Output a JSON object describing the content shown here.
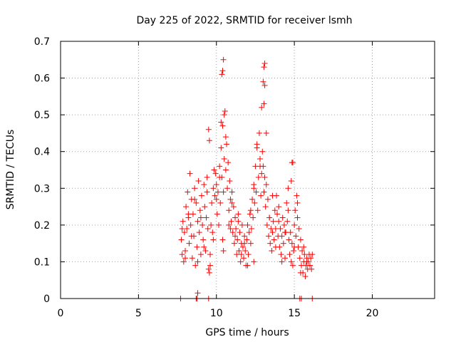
{
  "chart_data": {
    "type": "scatter",
    "title": "Day 225 of 2022, SRMTID for receiver lsmh",
    "xlabel": "GPS time / hours",
    "ylabel": "SRMTID / TECUs",
    "xlim": [
      0,
      24
    ],
    "ylim": [
      0,
      0.7
    ],
    "xticks": [
      0,
      5,
      10,
      15,
      20
    ],
    "xtick_labels": [
      "0",
      "5",
      "10",
      "15",
      "20"
    ],
    "yticks": [
      0,
      0.1,
      0.2,
      0.3,
      0.4,
      0.5,
      0.6,
      0.7
    ],
    "ytick_labels": [
      "0",
      "0.1",
      "0.2",
      "0.3",
      "0.4",
      "0.5",
      "0.6",
      "0.7"
    ],
    "grid": true,
    "marker": "+",
    "color": "#ff0000",
    "series": [
      {
        "name": "SRMTID",
        "x": [
          7.75,
          7.8,
          7.85,
          7.9,
          7.95,
          8.0,
          8.05,
          8.1,
          8.15,
          8.2,
          8.25,
          8.3,
          8.35,
          8.4,
          8.45,
          8.5,
          8.55,
          8.6,
          8.65,
          8.7,
          8.75,
          8.8,
          8.85,
          8.9,
          8.95,
          9.0,
          9.05,
          9.1,
          9.15,
          9.2,
          9.25,
          9.3,
          9.35,
          9.4,
          9.45,
          9.5,
          9.55,
          9.6,
          9.65,
          9.7,
          9.75,
          9.8,
          9.85,
          9.9,
          9.95,
          10.0,
          10.05,
          10.1,
          10.15,
          10.2,
          10.25,
          10.3,
          10.35,
          10.4,
          10.45,
          10.5,
          10.55,
          10.6,
          10.65,
          10.7,
          10.75,
          10.8,
          10.85,
          10.9,
          10.95,
          11.0,
          11.05,
          11.1,
          11.15,
          11.2,
          11.25,
          11.3,
          11.35,
          11.4,
          11.45,
          11.5,
          11.55,
          11.6,
          11.65,
          11.7,
          11.75,
          11.8,
          11.85,
          11.9,
          11.95,
          12.0,
          12.05,
          12.1,
          12.15,
          12.2,
          12.25,
          12.3,
          12.35,
          12.4,
          12.45,
          12.5,
          12.55,
          12.6,
          12.65,
          12.7,
          12.75,
          12.8,
          12.85,
          12.9,
          12.95,
          13.0,
          13.05,
          13.1,
          13.15,
          13.2,
          13.25,
          13.3,
          13.35,
          13.4,
          13.45,
          13.5,
          13.55,
          13.6,
          13.65,
          13.7,
          13.75,
          13.8,
          13.85,
          13.9,
          13.95,
          14.0,
          14.05,
          14.1,
          14.15,
          14.2,
          14.25,
          14.3,
          14.35,
          14.4,
          14.45,
          14.5,
          14.55,
          14.6,
          14.65,
          14.7,
          14.75,
          14.8,
          14.85,
          14.9,
          14.95,
          15.0,
          15.05,
          15.1,
          15.15,
          15.2,
          15.25,
          15.3,
          15.35,
          15.4,
          15.45,
          15.5,
          15.55,
          15.6,
          15.65,
          15.7,
          15.75,
          15.8,
          15.85,
          15.9,
          15.95,
          16.0,
          16.05,
          16.1,
          16.15,
          7.8,
          8.0,
          8.2,
          8.4,
          8.6,
          8.8,
          9.0,
          9.2,
          9.4,
          9.6,
          9.8,
          10.0,
          10.2,
          10.3,
          10.35,
          10.4,
          10.45,
          10.5,
          10.6,
          10.8,
          11.0,
          11.2,
          11.4,
          11.6,
          11.8,
          12.0,
          12.2,
          12.4,
          12.6,
          12.8,
          12.9,
          13.0,
          13.05,
          13.1,
          13.2,
          13.4,
          13.6,
          13.8,
          14.0,
          14.2,
          14.4,
          14.6,
          14.8,
          14.9,
          15.0,
          15.2,
          15.4,
          15.6,
          15.8,
          16.0,
          9.5,
          9.55,
          10.4,
          10.45,
          13.05,
          13.1,
          10.9,
          12.4,
          14.85,
          7.7,
          8.7,
          8.75,
          9.5,
          15.35,
          15.45,
          16.15,
          8.8
        ],
        "y": [
          0.16,
          0.12,
          0.21,
          0.1,
          0.18,
          0.13,
          0.25,
          0.19,
          0.29,
          0.22,
          0.15,
          0.34,
          0.2,
          0.27,
          0.11,
          0.23,
          0.17,
          0.3,
          0.09,
          0.26,
          0.14,
          0.21,
          0.32,
          0.18,
          0.24,
          0.12,
          0.28,
          0.2,
          0.16,
          0.31,
          0.25,
          0.13,
          0.22,
          0.33,
          0.19,
          0.08,
          0.07,
          0.12,
          0.2,
          0.26,
          0.18,
          0.3,
          0.35,
          0.28,
          0.34,
          0.31,
          0.23,
          0.29,
          0.2,
          0.36,
          0.26,
          0.41,
          0.33,
          0.47,
          0.29,
          0.38,
          0.51,
          0.35,
          0.42,
          0.3,
          0.37,
          0.24,
          0.32,
          0.27,
          0.21,
          0.29,
          0.18,
          0.25,
          0.15,
          0.22,
          0.19,
          0.12,
          0.16,
          0.21,
          0.13,
          0.18,
          0.1,
          0.15,
          0.2,
          0.14,
          0.11,
          0.17,
          0.13,
          0.09,
          0.16,
          0.2,
          0.12,
          0.18,
          0.23,
          0.15,
          0.19,
          0.27,
          0.22,
          0.31,
          0.26,
          0.36,
          0.29,
          0.41,
          0.24,
          0.33,
          0.45,
          0.38,
          0.28,
          0.34,
          0.4,
          0.36,
          0.29,
          0.33,
          0.25,
          0.31,
          0.2,
          0.27,
          0.17,
          0.22,
          0.15,
          0.19,
          0.13,
          0.18,
          0.21,
          0.16,
          0.24,
          0.19,
          0.28,
          0.23,
          0.17,
          0.21,
          0.14,
          0.19,
          0.12,
          0.17,
          0.22,
          0.15,
          0.2,
          0.11,
          0.18,
          0.26,
          0.21,
          0.3,
          0.16,
          0.12,
          0.18,
          0.1,
          0.15,
          0.09,
          0.13,
          0.2,
          0.24,
          0.17,
          0.28,
          0.22,
          0.14,
          0.19,
          0.11,
          0.16,
          0.09,
          0.13,
          0.07,
          0.1,
          0.12,
          0.06,
          0.09,
          0.11,
          0.08,
          0.1,
          0.12,
          0.09,
          0.11,
          0.08,
          0.12,
          0.19,
          0.11,
          0.23,
          0.17,
          0.27,
          0.1,
          0.22,
          0.14,
          0.29,
          0.09,
          0.16,
          0.27,
          0.33,
          0.48,
          0.61,
          0.62,
          0.65,
          0.5,
          0.44,
          0.2,
          0.26,
          0.17,
          0.23,
          0.12,
          0.15,
          0.09,
          0.24,
          0.3,
          0.42,
          0.36,
          0.52,
          0.59,
          0.63,
          0.64,
          0.45,
          0.22,
          0.28,
          0.14,
          0.25,
          0.1,
          0.18,
          0.24,
          0.32,
          0.37,
          0.14,
          0.26,
          0.07,
          0.14,
          0.1,
          0.09,
          0.46,
          0.43,
          0.16,
          0.13,
          0.53,
          0.58,
          0.19,
          0.1,
          0.37,
          0.0,
          0.0,
          0.0,
          0.0,
          0.0,
          0.0,
          0.0,
          0.015
        ]
      }
    ]
  }
}
